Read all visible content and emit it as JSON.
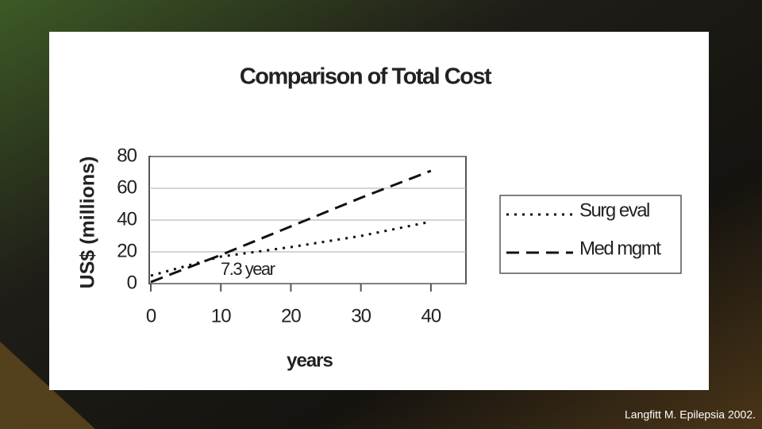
{
  "chart_data": {
    "type": "line",
    "title": "Comparison of Total Cost",
    "xlabel": "years",
    "ylabel": "US$ (millions)",
    "x": [
      0,
      10,
      20,
      30,
      40
    ],
    "series": [
      {
        "name": "Surg eval",
        "color": "#111111",
        "style": "dotted",
        "values": [
          5,
          17,
          23,
          30,
          39
        ]
      },
      {
        "name": "Med mgmt",
        "color": "#111111",
        "style": "dashed",
        "values": [
          1,
          18,
          36,
          54,
          71
        ]
      }
    ],
    "xlim": [
      0,
      45
    ],
    "ylim": [
      0,
      80
    ],
    "xticks": [
      0,
      10,
      20,
      30,
      40
    ],
    "yticks": [
      0,
      20,
      40,
      60,
      80
    ],
    "grid": true,
    "legend": "right",
    "annotation": "7.3 year"
  },
  "caption": "Langfitt M. Epilepsia 2002."
}
